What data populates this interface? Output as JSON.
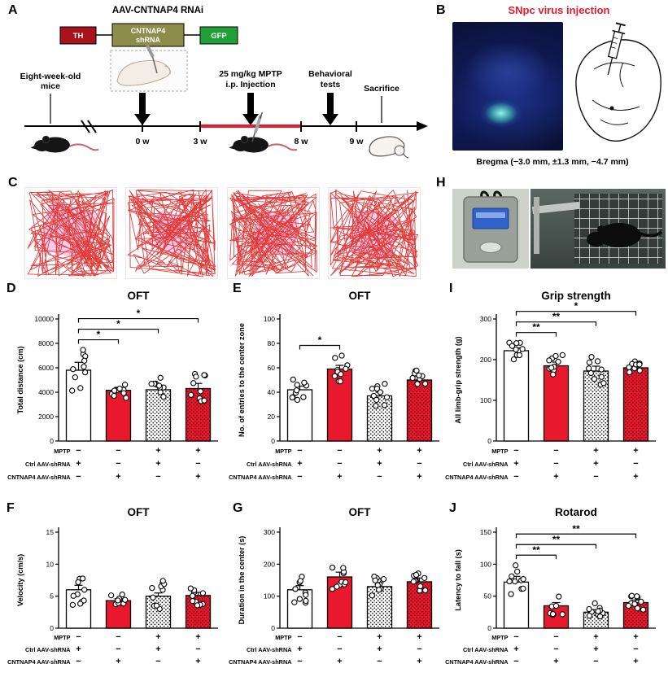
{
  "colors": {
    "red": "#E8192C",
    "th_box": "#A6131B",
    "shrna_box": "#8E8C4A",
    "gfp_box": "#21A038",
    "track": "#E03131",
    "center_zone": "#FF9FD6",
    "stipple_dot": "#111111",
    "stipple_dot_red": "#6B000F"
  },
  "panels": {
    "A": {
      "label": "A",
      "title": "AAV-CNTNAP4 RNAi",
      "construct": {
        "box1": "TH",
        "box2_line1": "CNTNAP4",
        "box2_line2": "shRNA",
        "box3": "GFP"
      },
      "mice_label_1": "Eight-week-old",
      "mice_label_2": "mice",
      "mptp_label_1": "25 mg/kg MPTP",
      "mptp_label_2": "i.p. Injection",
      "behavior_label_1": "Behavioral",
      "behavior_label_2": "tests",
      "sacrifice_label": "Sacrifice",
      "ticks": [
        "0 w",
        "3 w",
        "8 w",
        "9 w"
      ]
    },
    "B": {
      "label": "B",
      "title": "SNpc virus injection",
      "caption": "Bregma (−3.0 mm, ±1.3 mm, −4.7 mm)"
    },
    "C": {
      "label": "C"
    },
    "D": {
      "label": "D"
    },
    "E": {
      "label": "E"
    },
    "F": {
      "label": "F"
    },
    "G": {
      "label": "G"
    },
    "H": {
      "label": "H"
    },
    "I": {
      "label": "I"
    },
    "J": {
      "label": "J"
    }
  },
  "groups": [
    "Ctrl AAV-shRNA",
    "CNTNAP4 AAV-shRNA",
    "MPTP + Ctrl AAV-shRNA",
    "MPTP + CNTNAP4 AAV-shRNA"
  ],
  "group_rows": [
    {
      "label": "MPTP",
      "signs": [
        "−",
        "−",
        "+",
        "+"
      ]
    },
    {
      "label": "Ctrl AAV-shRNA",
      "signs": [
        "+",
        "−",
        "+",
        "−"
      ]
    },
    {
      "label": "CNTNAP4 AAV-shRNA",
      "signs": [
        "−",
        "+",
        "−",
        "+"
      ]
    }
  ],
  "chart_data": [
    {
      "panel": "D",
      "type": "bar",
      "title": "OFT",
      "ylabel": "Total distance (cm)",
      "ylim": [
        0,
        10000
      ],
      "yticks": [
        0,
        2000,
        4000,
        6000,
        8000,
        10000
      ],
      "points_per_bar": 10,
      "bars": [
        {
          "mean": 5800,
          "sem": 650,
          "spread": 2000,
          "style": "open"
        },
        {
          "mean": 4150,
          "sem": 250,
          "spread": 700,
          "style": "red"
        },
        {
          "mean": 4200,
          "sem": 380,
          "spread": 1000,
          "style": "stipple_open"
        },
        {
          "mean": 4300,
          "sem": 420,
          "spread": 1400,
          "style": "stipple_red"
        }
      ],
      "sig": [
        {
          "from": 0,
          "to": 1,
          "label": "*"
        },
        {
          "from": 0,
          "to": 2,
          "label": "*"
        },
        {
          "from": 0,
          "to": 3,
          "label": "*"
        }
      ]
    },
    {
      "panel": "E",
      "type": "bar",
      "title": "OFT",
      "ylabel": "No. of entries to the center zone",
      "ylim": [
        0,
        100
      ],
      "yticks": [
        0,
        20,
        40,
        60,
        80,
        100
      ],
      "points_per_bar": 10,
      "bars": [
        {
          "mean": 42,
          "sem": 3,
          "spread": 9,
          "style": "open"
        },
        {
          "mean": 59,
          "sem": 3,
          "spread": 12,
          "style": "red"
        },
        {
          "mean": 37,
          "sem": 3,
          "spread": 10,
          "style": "stipple_open"
        },
        {
          "mean": 50,
          "sem": 3,
          "spread": 9,
          "style": "stipple_red"
        }
      ],
      "sig": [
        {
          "from": 0,
          "to": 1,
          "label": "*"
        }
      ]
    },
    {
      "panel": "I",
      "type": "bar",
      "title": "Grip strength",
      "ylabel": "All limb-grip strength (g)",
      "ylim": [
        0,
        300
      ],
      "yticks": [
        0,
        100,
        200,
        300
      ],
      "points_per_bar": 10,
      "bars": [
        {
          "mean": 222,
          "sem": 7,
          "spread": 22,
          "style": "open"
        },
        {
          "mean": 185,
          "sem": 9,
          "spread": 28,
          "style": "red"
        },
        {
          "mean": 172,
          "sem": 12,
          "spread": 35,
          "style": "stipple_open"
        },
        {
          "mean": 180,
          "sem": 7,
          "spread": 20,
          "style": "stipple_red"
        }
      ],
      "sig": [
        {
          "from": 0,
          "to": 1,
          "label": "**"
        },
        {
          "from": 0,
          "to": 2,
          "label": "**"
        },
        {
          "from": 0,
          "to": 3,
          "label": "*"
        }
      ]
    },
    {
      "panel": "F",
      "type": "bar",
      "title": "OFT",
      "ylabel": "Velocity (cm/s)",
      "ylim": [
        0,
        15
      ],
      "yticks": [
        0,
        5,
        10,
        15
      ],
      "points_per_bar": 10,
      "bars": [
        {
          "mean": 6,
          "sem": 0.7,
          "spread": 2.5,
          "style": "open"
        },
        {
          "mean": 4.3,
          "sem": 0.3,
          "spread": 1,
          "style": "red"
        },
        {
          "mean": 5,
          "sem": 0.5,
          "spread": 2.4,
          "style": "stipple_open"
        },
        {
          "mean": 5.1,
          "sem": 0.5,
          "spread": 1.8,
          "style": "stipple_red"
        }
      ],
      "sig": []
    },
    {
      "panel": "G",
      "type": "bar",
      "title": "OFT",
      "ylabel": "Duration in the center (s)",
      "ylim": [
        0,
        300
      ],
      "yticks": [
        0,
        100,
        200,
        300
      ],
      "points_per_bar": 10,
      "bars": [
        {
          "mean": 120,
          "sem": 13,
          "spread": 45,
          "style": "open"
        },
        {
          "mean": 160,
          "sem": 15,
          "spread": 40,
          "style": "red"
        },
        {
          "mean": 130,
          "sem": 12,
          "spread": 35,
          "style": "stipple_open"
        },
        {
          "mean": 145,
          "sem": 12,
          "spread": 30,
          "style": "stipple_red"
        }
      ],
      "sig": []
    },
    {
      "panel": "J",
      "type": "bar",
      "title": "Rotarod",
      "ylabel": "Latency to fall (s)",
      "ylim": [
        0,
        150
      ],
      "yticks": [
        0,
        50,
        100,
        150
      ],
      "points_per_bar": 10,
      "bars": [
        {
          "mean": 72,
          "sem": 9,
          "spread": 28,
          "style": "open"
        },
        {
          "mean": 35,
          "sem": 5,
          "spread": 15,
          "style": "red"
        },
        {
          "mean": 25,
          "sem": 4,
          "spread": 14,
          "style": "stipple_open"
        },
        {
          "mean": 40,
          "sem": 4,
          "spread": 12,
          "style": "stipple_red"
        }
      ],
      "sig": [
        {
          "from": 0,
          "to": 1,
          "label": "**"
        },
        {
          "from": 0,
          "to": 2,
          "label": "**"
        },
        {
          "from": 0,
          "to": 3,
          "label": "**"
        }
      ]
    }
  ]
}
